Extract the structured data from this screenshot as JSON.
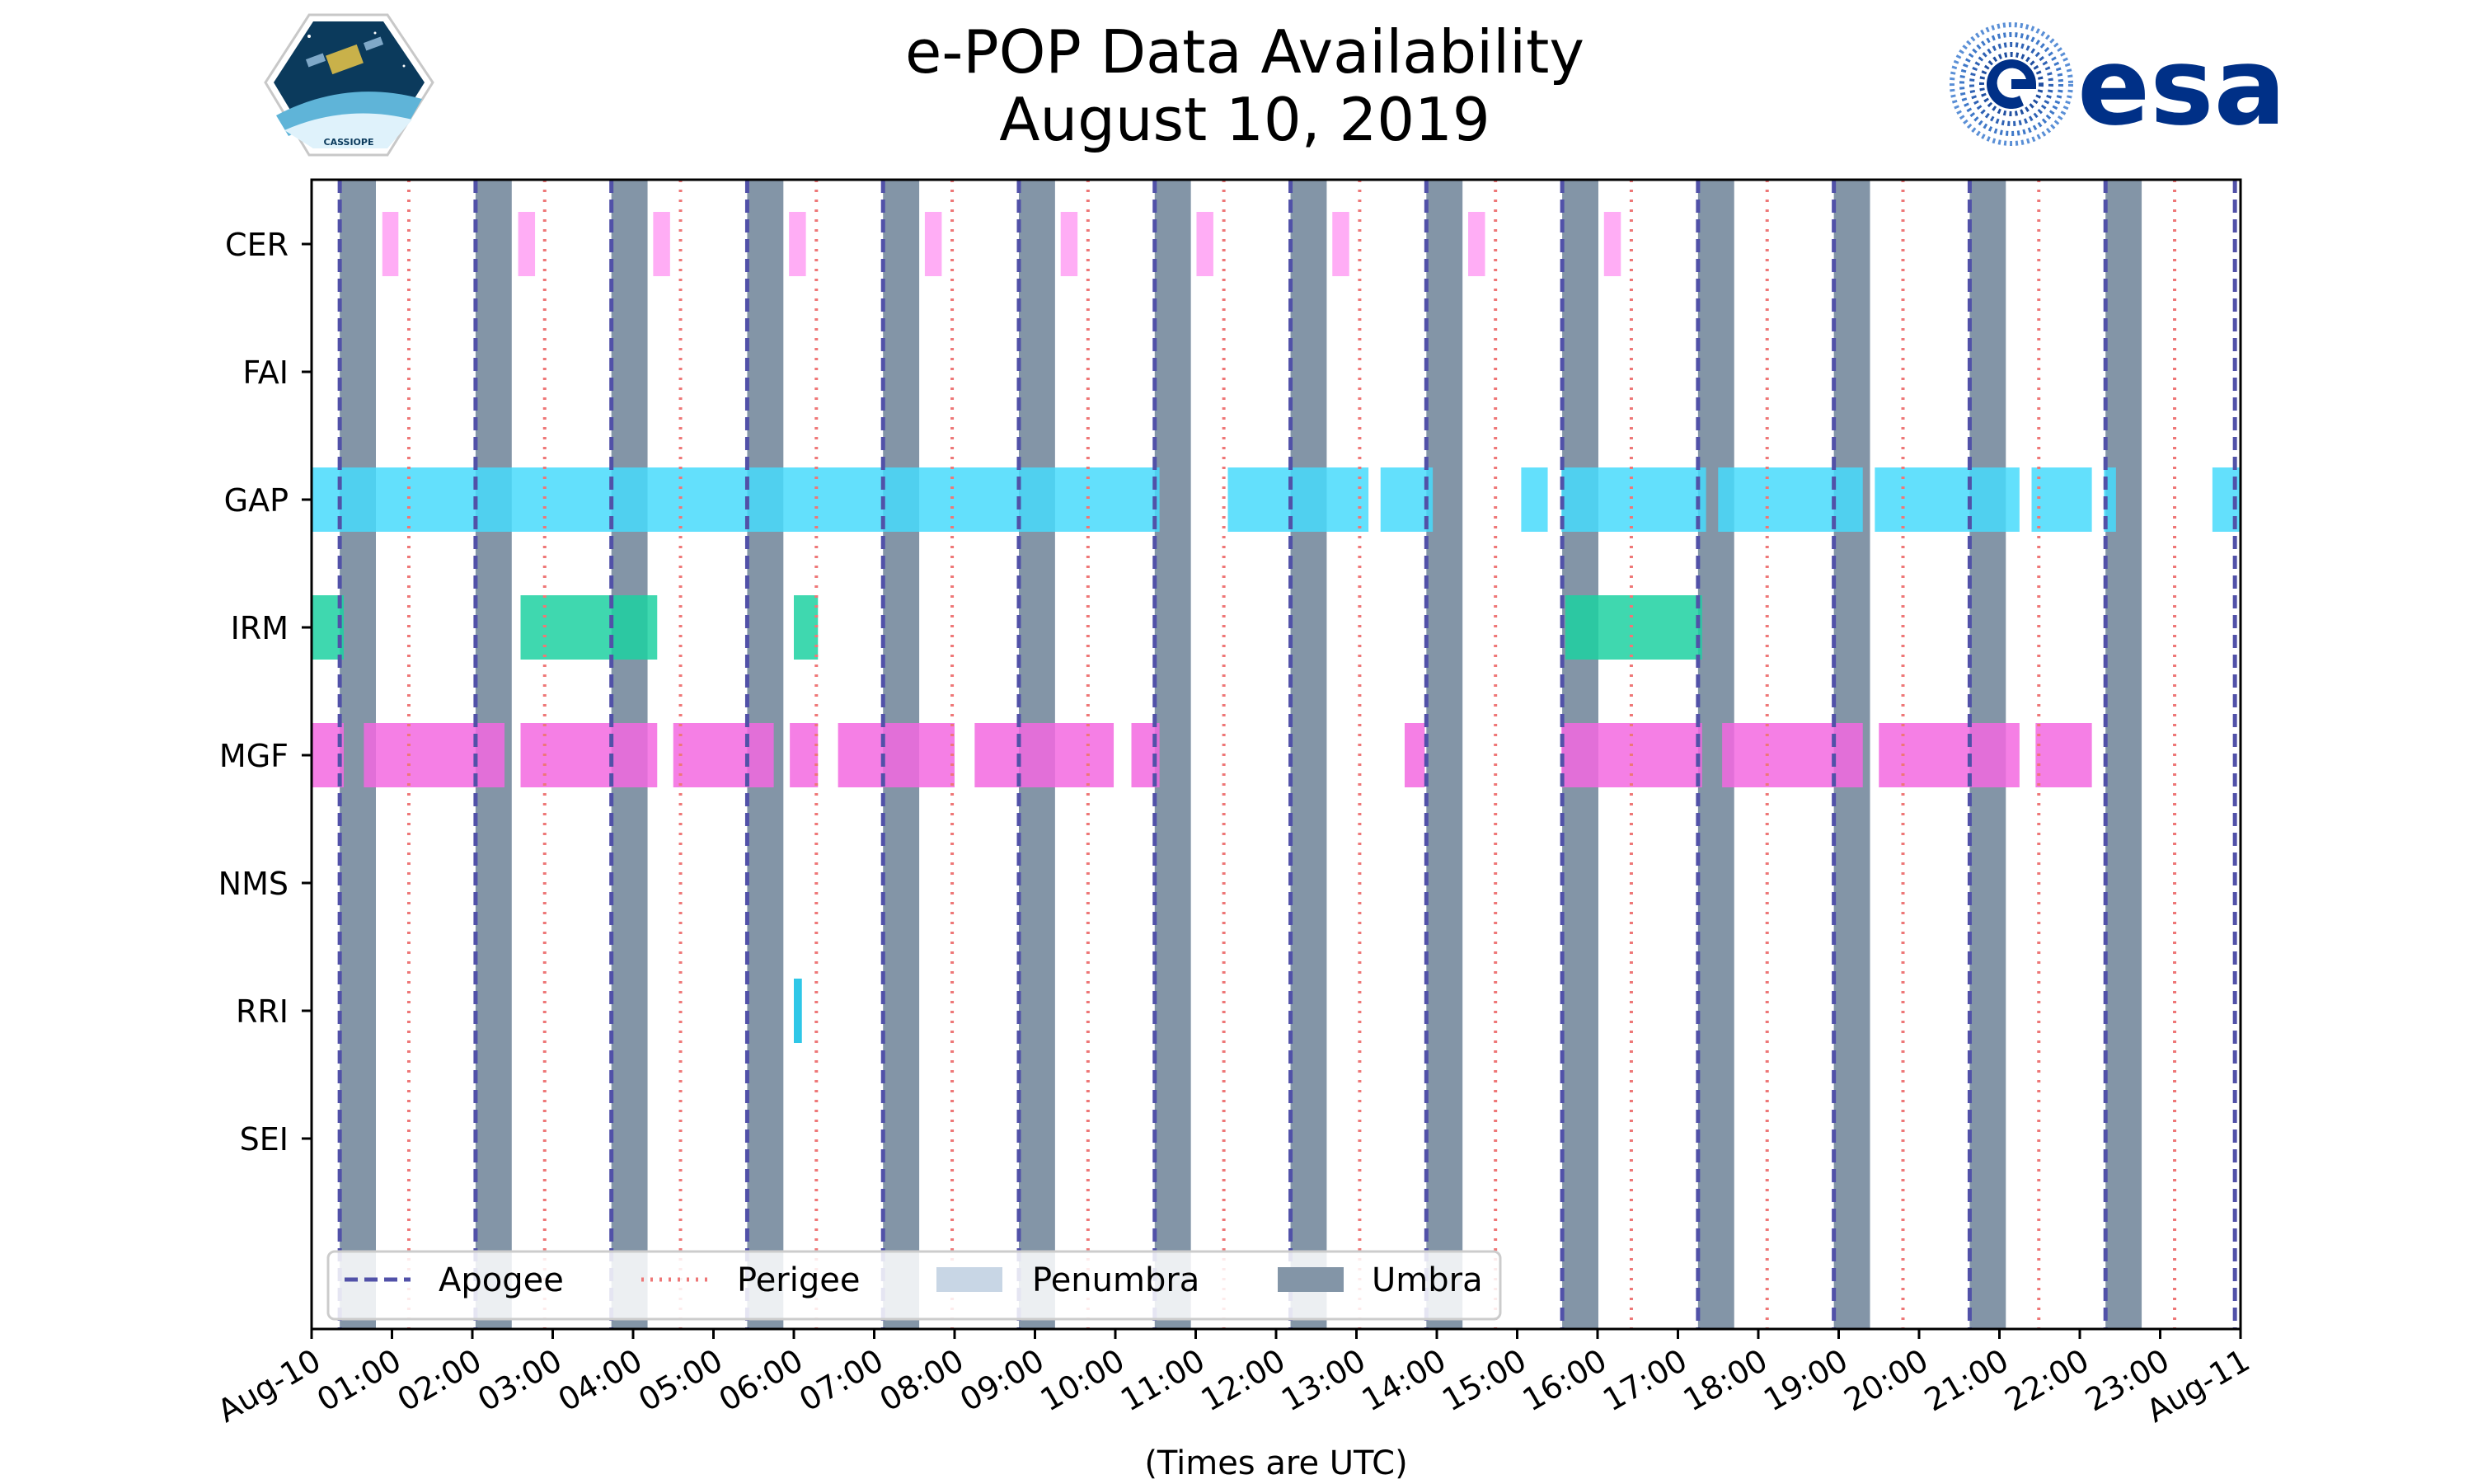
{
  "chart_data": {
    "type": "timeline",
    "title_lines": [
      "e-POP Data Availability",
      "August 10, 2019"
    ],
    "xlabel": "(Times are UTC)",
    "x_unit": "hours UTC",
    "xlim": [
      0,
      24
    ],
    "x_tick_labels": [
      "Aug-10",
      "01:00",
      "02:00",
      "03:00",
      "04:00",
      "05:00",
      "06:00",
      "07:00",
      "08:00",
      "09:00",
      "10:00",
      "11:00",
      "12:00",
      "13:00",
      "14:00",
      "15:00",
      "16:00",
      "17:00",
      "18:00",
      "19:00",
      "20:00",
      "21:00",
      "22:00",
      "23:00",
      "Aug-11"
    ],
    "instruments": [
      "CER",
      "FAI",
      "GAP",
      "IRM",
      "MGF",
      "NMS",
      "RRI",
      "SEI"
    ],
    "instrument_colors": {
      "CER": "#ff9ff3",
      "FAI": "#ffffff",
      "GAP": "#48dbfb",
      "IRM": "#1dd1a1",
      "MGF": "#f368e0",
      "NMS": "#ffffff",
      "RRI": "#0abde3",
      "SEI": "#ffffff"
    },
    "data_intervals": {
      "CER": [
        [
          0.88,
          1.08
        ],
        [
          2.57,
          2.78
        ],
        [
          4.25,
          4.46
        ],
        [
          5.94,
          6.15
        ],
        [
          7.63,
          7.84
        ],
        [
          9.32,
          9.53
        ],
        [
          11.01,
          11.22
        ],
        [
          12.7,
          12.91
        ],
        [
          14.39,
          14.6
        ],
        [
          16.08,
          16.29
        ]
      ],
      "FAI": [],
      "GAP": [
        [
          0.0,
          10.55
        ],
        [
          11.4,
          13.15
        ],
        [
          13.3,
          13.95
        ],
        [
          15.05,
          15.38
        ],
        [
          15.55,
          17.35
        ],
        [
          17.5,
          19.3
        ],
        [
          19.45,
          21.25
        ],
        [
          21.4,
          22.15
        ],
        [
          22.3,
          22.45
        ],
        [
          23.65,
          24.0
        ]
      ],
      "IRM": [
        [
          0.0,
          0.4
        ],
        [
          2.6,
          4.3
        ],
        [
          6.0,
          6.3
        ],
        [
          15.6,
          17.3
        ]
      ],
      "MGF": [
        [
          0.0,
          0.4
        ],
        [
          0.65,
          2.4
        ],
        [
          2.6,
          4.3
        ],
        [
          4.5,
          5.75
        ],
        [
          5.95,
          6.3
        ],
        [
          6.55,
          8.0
        ],
        [
          8.25,
          9.98
        ],
        [
          10.2,
          10.55
        ],
        [
          13.6,
          13.85
        ],
        [
          15.55,
          17.3
        ],
        [
          17.55,
          19.3
        ],
        [
          19.5,
          21.25
        ],
        [
          21.45,
          22.15
        ]
      ],
      "NMS": [],
      "RRI": [
        [
          6.0,
          6.1
        ]
      ],
      "SEI": []
    },
    "umbra_intervals": [
      [
        0.35,
        0.8
      ],
      [
        2.04,
        2.49
      ],
      [
        3.73,
        4.18
      ],
      [
        5.42,
        5.87
      ],
      [
        7.11,
        7.56
      ],
      [
        8.8,
        9.25
      ],
      [
        10.49,
        10.94
      ],
      [
        12.18,
        12.63
      ],
      [
        13.87,
        14.32
      ],
      [
        15.56,
        16.01
      ],
      [
        17.25,
        17.7
      ],
      [
        18.94,
        19.39
      ],
      [
        20.63,
        21.08
      ],
      [
        22.32,
        22.77
      ]
    ],
    "penumbra_intervals": [],
    "apogee_times": [
      0.35,
      2.04,
      3.73,
      5.42,
      7.11,
      8.8,
      10.49,
      12.18,
      13.87,
      15.56,
      17.25,
      18.94,
      20.63,
      22.32,
      23.93
    ],
    "perigee_times": [
      1.21,
      2.9,
      4.59,
      6.28,
      7.97,
      9.66,
      11.35,
      13.04,
      14.73,
      16.42,
      18.11,
      19.8,
      21.49,
      23.18
    ],
    "legend": {
      "position": "lower-left",
      "entries": [
        {
          "label": "Apogee",
          "style": "dashed",
          "color": "#5151a8"
        },
        {
          "label": "Perigee",
          "style": "dotted",
          "color": "#ee7777"
        },
        {
          "label": "Penumbra",
          "style": "patch",
          "color": "#c8d6e5"
        },
        {
          "label": "Umbra",
          "style": "patch",
          "color": "#8395a7"
        }
      ]
    },
    "logos": {
      "left": "CASSIOPE",
      "right": "esa"
    }
  }
}
